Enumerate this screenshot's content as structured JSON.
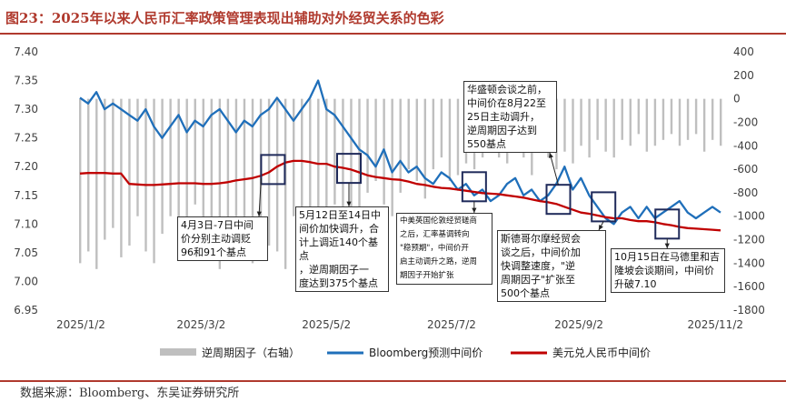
{
  "title": "图23：2025年以来人民币汇率政策管理表现出辅助对外经贸关系的色彩",
  "source": "数据来源：Bloomberg、东吴证券研究所",
  "chart_data": {
    "type": "line",
    "x_ticks": [
      "2025/1/2",
      "2025/3/2",
      "2025/5/2",
      "2025/7/2",
      "2025/9/2",
      "2025/11/2"
    ],
    "y_left": {
      "min": 6.95,
      "max": 7.4,
      "ticks": [
        "7.40",
        "7.35",
        "7.30",
        "7.25",
        "7.20",
        "7.15",
        "7.10",
        "7.05",
        "7.00",
        "6.95"
      ]
    },
    "y_right": {
      "min": -1800,
      "max": 400,
      "ticks": [
        "400",
        "200",
        "0",
        "-200",
        "-400",
        "-600",
        "-800",
        "-1000",
        "-1200",
        "-1400",
        "-1600",
        "-1800"
      ]
    },
    "grid": false,
    "legend_position": "bottom",
    "series": [
      {
        "name": "逆周期因子（右轴）",
        "kind": "bar",
        "axis": "right",
        "color": "#bfbfbf",
        "dates": [
          "2025-01-02",
          "2025-01-06",
          "2025-01-10",
          "2025-01-14",
          "2025-01-18",
          "2025-01-22",
          "2025-01-26",
          "2025-01-30",
          "2025-02-03",
          "2025-02-07",
          "2025-02-11",
          "2025-02-15",
          "2025-02-19",
          "2025-02-23",
          "2025-02-27",
          "2025-03-03",
          "2025-03-07",
          "2025-03-11",
          "2025-03-15",
          "2025-03-19",
          "2025-03-23",
          "2025-03-27",
          "2025-03-31",
          "2025-04-04",
          "2025-04-08",
          "2025-04-12",
          "2025-04-16",
          "2025-04-20",
          "2025-04-24",
          "2025-04-28",
          "2025-05-02",
          "2025-05-06",
          "2025-05-10",
          "2025-05-14",
          "2025-05-18",
          "2025-05-22",
          "2025-05-26",
          "2025-05-30",
          "2025-06-03",
          "2025-06-07",
          "2025-06-11",
          "2025-06-15",
          "2025-06-19",
          "2025-06-23",
          "2025-06-27",
          "2025-07-01",
          "2025-07-05",
          "2025-07-09",
          "2025-07-13",
          "2025-07-17",
          "2025-07-21",
          "2025-07-25",
          "2025-07-29",
          "2025-08-02",
          "2025-08-06",
          "2025-08-10",
          "2025-08-14",
          "2025-08-18",
          "2025-08-22",
          "2025-08-26",
          "2025-08-30",
          "2025-09-03",
          "2025-09-07",
          "2025-09-11",
          "2025-09-15",
          "2025-09-19",
          "2025-09-23",
          "2025-09-27",
          "2025-10-01",
          "2025-10-05",
          "2025-10-09",
          "2025-10-13",
          "2025-10-17",
          "2025-10-21",
          "2025-10-25",
          "2025-10-29",
          "2025-11-02",
          "2025-11-06",
          "2025-11-10"
        ],
        "values": [
          -1400,
          -1300,
          -1450,
          -1200,
          -1100,
          -1350,
          -1250,
          -1000,
          -1300,
          -1400,
          -1150,
          -1000,
          -1300,
          -1250,
          -900,
          -1100,
          -1300,
          -1450,
          -1200,
          -1000,
          -1350,
          -1400,
          -1100,
          -1250,
          -1300,
          -1450,
          -1000,
          -1200,
          -1380,
          -1150,
          -1000,
          -900,
          -1100,
          -1200,
          -1000,
          -800,
          -700,
          -900,
          -1000,
          -800,
          -600,
          -700,
          -850,
          -600,
          -500,
          -700,
          -650,
          -550,
          -600,
          -500,
          -450,
          -500,
          -550,
          -400,
          -500,
          -650,
          -400,
          -500,
          -600,
          -450,
          -550,
          -400,
          -500,
          -350,
          -450,
          -500,
          -350,
          -400,
          -300,
          -450,
          -400,
          -350,
          -300,
          -400,
          -350,
          -300,
          -450,
          -350,
          -400
        ]
      },
      {
        "name": "Bloomberg预测中间价",
        "kind": "line",
        "axis": "left",
        "color": "#1f6fba",
        "dates": [
          "2025-01-02",
          "2025-01-06",
          "2025-01-10",
          "2025-01-14",
          "2025-01-18",
          "2025-01-22",
          "2025-01-26",
          "2025-01-30",
          "2025-02-03",
          "2025-02-07",
          "2025-02-11",
          "2025-02-15",
          "2025-02-19",
          "2025-02-23",
          "2025-02-27",
          "2025-03-03",
          "2025-03-07",
          "2025-03-11",
          "2025-03-15",
          "2025-03-19",
          "2025-03-23",
          "2025-03-27",
          "2025-03-31",
          "2025-04-04",
          "2025-04-08",
          "2025-04-12",
          "2025-04-16",
          "2025-04-20",
          "2025-04-24",
          "2025-04-28",
          "2025-05-02",
          "2025-05-06",
          "2025-05-10",
          "2025-05-14",
          "2025-05-18",
          "2025-05-22",
          "2025-05-26",
          "2025-05-30",
          "2025-06-03",
          "2025-06-07",
          "2025-06-11",
          "2025-06-15",
          "2025-06-19",
          "2025-06-23",
          "2025-06-27",
          "2025-07-01",
          "2025-07-05",
          "2025-07-09",
          "2025-07-13",
          "2025-07-17",
          "2025-07-21",
          "2025-07-25",
          "2025-07-29",
          "2025-08-02",
          "2025-08-06",
          "2025-08-10",
          "2025-08-14",
          "2025-08-18",
          "2025-08-22",
          "2025-08-26",
          "2025-08-30",
          "2025-09-03",
          "2025-09-07",
          "2025-09-11",
          "2025-09-15",
          "2025-09-19",
          "2025-09-23",
          "2025-09-27",
          "2025-10-01",
          "2025-10-05",
          "2025-10-09",
          "2025-10-13",
          "2025-10-17",
          "2025-10-21",
          "2025-10-25",
          "2025-10-29",
          "2025-11-02",
          "2025-11-06",
          "2025-11-10"
        ],
        "values": [
          7.32,
          7.31,
          7.33,
          7.3,
          7.31,
          7.3,
          7.29,
          7.28,
          7.3,
          7.27,
          7.25,
          7.27,
          7.29,
          7.26,
          7.28,
          7.27,
          7.29,
          7.3,
          7.28,
          7.26,
          7.28,
          7.27,
          7.29,
          7.3,
          7.32,
          7.3,
          7.28,
          7.3,
          7.32,
          7.35,
          7.3,
          7.29,
          7.27,
          7.25,
          7.23,
          7.22,
          7.2,
          7.23,
          7.19,
          7.21,
          7.19,
          7.2,
          7.18,
          7.17,
          7.19,
          7.18,
          7.16,
          7.17,
          7.15,
          7.16,
          7.14,
          7.15,
          7.17,
          7.18,
          7.15,
          7.16,
          7.14,
          7.15,
          7.17,
          7.2,
          7.16,
          7.18,
          7.15,
          7.13,
          7.11,
          7.1,
          7.12,
          7.13,
          7.11,
          7.13,
          7.11,
          7.12,
          7.13,
          7.14,
          7.12,
          7.11,
          7.12,
          7.13,
          7.12
        ]
      },
      {
        "name": "美元兑人民币中间价",
        "kind": "line",
        "axis": "left",
        "color": "#c00000",
        "dates": [
          "2025-01-02",
          "2025-01-06",
          "2025-01-10",
          "2025-01-14",
          "2025-01-18",
          "2025-01-22",
          "2025-01-26",
          "2025-01-30",
          "2025-02-03",
          "2025-02-07",
          "2025-02-11",
          "2025-02-15",
          "2025-02-19",
          "2025-02-23",
          "2025-02-27",
          "2025-03-03",
          "2025-03-07",
          "2025-03-11",
          "2025-03-15",
          "2025-03-19",
          "2025-03-23",
          "2025-03-27",
          "2025-03-31",
          "2025-04-04",
          "2025-04-08",
          "2025-04-12",
          "2025-04-16",
          "2025-04-20",
          "2025-04-24",
          "2025-04-28",
          "2025-05-02",
          "2025-05-06",
          "2025-05-10",
          "2025-05-14",
          "2025-05-18",
          "2025-05-22",
          "2025-05-26",
          "2025-05-30",
          "2025-06-03",
          "2025-06-07",
          "2025-06-11",
          "2025-06-15",
          "2025-06-19",
          "2025-06-23",
          "2025-06-27",
          "2025-07-01",
          "2025-07-05",
          "2025-07-09",
          "2025-07-13",
          "2025-07-17",
          "2025-07-21",
          "2025-07-25",
          "2025-07-29",
          "2025-08-02",
          "2025-08-06",
          "2025-08-10",
          "2025-08-14",
          "2025-08-18",
          "2025-08-22",
          "2025-08-26",
          "2025-08-30",
          "2025-09-03",
          "2025-09-07",
          "2025-09-11",
          "2025-09-15",
          "2025-09-19",
          "2025-09-23",
          "2025-09-27",
          "2025-10-01",
          "2025-10-05",
          "2025-10-09",
          "2025-10-13",
          "2025-10-17",
          "2025-10-21",
          "2025-10-25",
          "2025-10-29",
          "2025-11-02",
          "2025-11-06",
          "2025-11-10"
        ],
        "values": [
          7.188,
          7.189,
          7.189,
          7.189,
          7.188,
          7.188,
          7.17,
          7.169,
          7.168,
          7.168,
          7.169,
          7.17,
          7.171,
          7.171,
          7.171,
          7.17,
          7.17,
          7.171,
          7.173,
          7.176,
          7.178,
          7.18,
          7.184,
          7.19,
          7.2,
          7.207,
          7.21,
          7.21,
          7.208,
          7.205,
          7.205,
          7.2,
          7.198,
          7.195,
          7.19,
          7.185,
          7.182,
          7.18,
          7.178,
          7.177,
          7.174,
          7.17,
          7.168,
          7.165,
          7.163,
          7.162,
          7.16,
          7.158,
          7.156,
          7.154,
          7.153,
          7.152,
          7.15,
          7.148,
          7.146,
          7.143,
          7.14,
          7.138,
          7.135,
          7.13,
          7.125,
          7.12,
          7.118,
          7.115,
          7.112,
          7.11,
          7.11,
          7.107,
          7.105,
          7.105,
          7.103,
          7.1,
          7.098,
          7.095,
          7.093,
          7.092,
          7.091,
          7.09,
          7.089
        ]
      }
    ],
    "highlights": [
      {
        "date": "2025-04-06",
        "value": 7.195
      },
      {
        "date": "2025-05-13",
        "value": 7.197
      },
      {
        "date": "2025-07-13",
        "value": 7.165
      },
      {
        "date": "2025-08-23",
        "value": 7.143
      },
      {
        "date": "2025-09-14",
        "value": 7.13
      },
      {
        "date": "2025-10-15",
        "value": 7.1
      }
    ],
    "annotations": [
      {
        "id": "apr",
        "text": "4月3日-7日中间\n价分别主动调贬\n96和91个基点"
      },
      {
        "id": "may",
        "text": "5月12日至14日中\n间价加快调升，合\n计上调近140个基点\n，逆周期因子一\n度达到375个基点"
      },
      {
        "id": "jul",
        "text": "中美英国伦敦经贸磋商\n之后，汇率基调转向\n\"稳预期\"，中间价开\n启主动调升之路，逆周\n期因子开始扩张"
      },
      {
        "id": "aug",
        "text": "华盛顿会谈之前，\n中间价在8月22至\n25日主动调升，\n逆周期因子达到\n550基点"
      },
      {
        "id": "sep",
        "text": "斯德哥尔摩经贸会\n谈之后，中间价加\n快调整速度，\"逆\n周期因子\"扩张至\n500个基点"
      },
      {
        "id": "oct",
        "text": "10月15日在马德里和吉\n隆坡会谈期间，中间价\n升破7.10"
      }
    ]
  }
}
